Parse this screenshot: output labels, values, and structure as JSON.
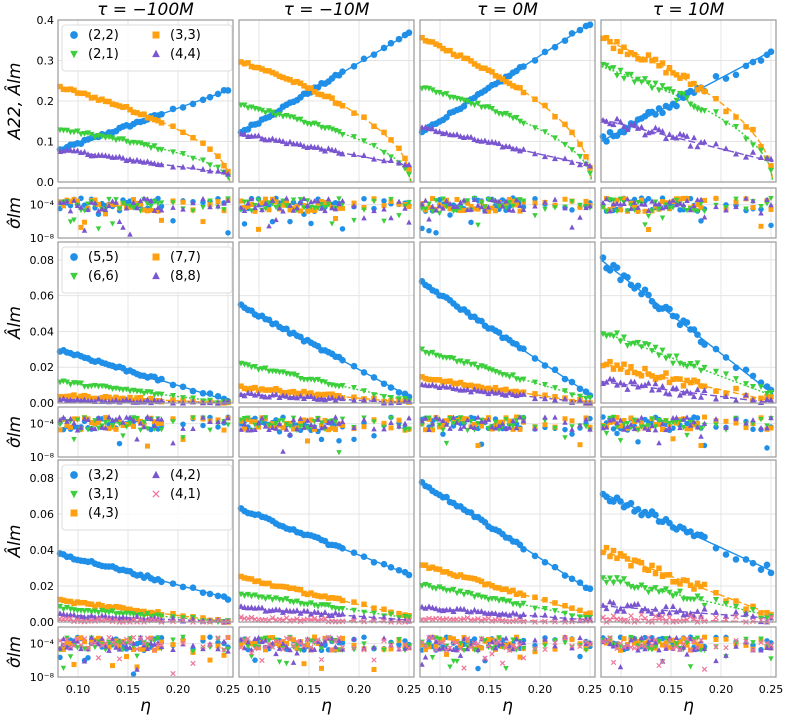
{
  "chart_data": {
    "type": "scatter",
    "title": "",
    "columns": [
      "τ = −100M",
      "τ = −10M",
      "τ = 0M",
      "τ = 10M"
    ],
    "xlabel": "η",
    "xlim": [
      0.08,
      0.255
    ],
    "xticks": [
      "0.10",
      "0.15",
      "0.20",
      "0.25"
    ],
    "xtick_values": [
      0.1,
      0.15,
      0.2,
      0.25
    ],
    "colors": {
      "blue": "#1f8fe8",
      "green": "#3ccf3c",
      "orange": "#ffa010",
      "purple": "#7a55d0",
      "pink": "#ee7799"
    },
    "rows": [
      {
        "ylabel": "A22, Âlm",
        "ylim": [
          0,
          0.4
        ],
        "yticks": [
          "0.0",
          "0.1",
          "0.2",
          "0.3",
          "0.4"
        ],
        "ytick_values": [
          0,
          0.1,
          0.2,
          0.3,
          0.4
        ],
        "legend": [
          {
            "label": "(2,2)",
            "color": "#1f8fe8",
            "marker": "circle"
          },
          {
            "label": "(3,3)",
            "color": "#ffa010",
            "marker": "square"
          },
          {
            "label": "(2,1)",
            "color": "#3ccf3c",
            "marker": "tri-down"
          },
          {
            "label": "(4,4)",
            "color": "#7a55d0",
            "marker": "tri-up"
          }
        ],
        "series": [
          {
            "name": "(2,2)",
            "color": "#1f8fe8",
            "marker": "circle",
            "kind": "lin",
            "start": [
              0.077,
              0.12,
              0.12,
              0.1
            ],
            "end": [
              0.228,
              0.37,
              0.395,
              0.325
            ]
          },
          {
            "name": "(3,3)",
            "color": "#ffa010",
            "marker": "square",
            "kind": "sqrt",
            "start": [
              0.235,
              0.3,
              0.355,
              0.355
            ],
            "end": [
              0.0,
              0.0,
              0.0,
              0.0
            ]
          },
          {
            "name": "(2,1)",
            "color": "#3ccf3c",
            "marker": "tri-down",
            "kind": "sqrt",
            "start": [
              0.13,
              0.19,
              0.235,
              0.285
            ],
            "end": [
              0.0,
              0.0,
              0.0,
              0.0
            ]
          },
          {
            "name": "(4,4)",
            "color": "#7a55d0",
            "marker": "tri-up",
            "kind": "lin",
            "start": [
              0.08,
              0.12,
              0.135,
              0.155
            ],
            "end": [
              0.02,
              0.04,
              0.04,
              0.05
            ]
          }
        ]
      },
      {
        "ylabel": "σ̂lm",
        "log": true,
        "ylim": [
          1e-08,
          0.01
        ],
        "yticks": [
          "10⁻⁴",
          "10⁻⁸"
        ],
        "ytick_values": [
          0.0001,
          1e-08
        ]
      },
      {
        "ylabel": "Âlm",
        "ylim": [
          0,
          0.09
        ],
        "yticks": [
          "0.00",
          "0.02",
          "0.04",
          "0.06",
          "0.08"
        ],
        "ytick_values": [
          0,
          0.02,
          0.04,
          0.06,
          0.08
        ],
        "legend": [
          {
            "label": "(5,5)",
            "color": "#1f8fe8",
            "marker": "circle"
          },
          {
            "label": "(7,7)",
            "color": "#ffa010",
            "marker": "square"
          },
          {
            "label": "(6,6)",
            "color": "#3ccf3c",
            "marker": "tri-down"
          },
          {
            "label": "(8,8)",
            "color": "#7a55d0",
            "marker": "tri-up"
          }
        ],
        "series": [
          {
            "name": "(5,5)",
            "color": "#1f8fe8",
            "marker": "circle",
            "kind": "lin",
            "start": [
              0.03,
              0.055,
              0.068,
              0.08
            ],
            "end": [
              0.001,
              0.003,
              0.004,
              0.005
            ]
          },
          {
            "name": "(7,7)",
            "color": "#ffa010",
            "marker": "square",
            "kind": "lin",
            "start": [
              0.004,
              0.009,
              0.014,
              0.022
            ],
            "end": [
              0.0,
              0.0,
              0.0,
              0.001
            ]
          },
          {
            "name": "(6,6)",
            "color": "#3ccf3c",
            "marker": "tri-down",
            "kind": "lin",
            "start": [
              0.012,
              0.022,
              0.03,
              0.04
            ],
            "end": [
              0.0,
              0.001,
              0.002,
              0.004
            ]
          },
          {
            "name": "(8,8)",
            "color": "#7a55d0",
            "marker": "tri-up",
            "kind": "lin",
            "start": [
              0.002,
              0.005,
              0.01,
              0.012
            ],
            "end": [
              0.0,
              0.0,
              0.0,
              0.0
            ]
          }
        ]
      },
      {
        "ylabel": "σ̂lm",
        "log": true,
        "ylim": [
          1e-08,
          0.01
        ],
        "yticks": [
          "10⁻⁴",
          "10⁻⁸"
        ],
        "ytick_values": [
          0.0001,
          1e-08
        ]
      },
      {
        "ylabel": "Âlm",
        "ylim": [
          0,
          0.09
        ],
        "yticks": [
          "0.00",
          "0.02",
          "0.04",
          "0.06",
          "0.08"
        ],
        "ytick_values": [
          0,
          0.02,
          0.04,
          0.06,
          0.08
        ],
        "legend": [
          {
            "label": "(3,2)",
            "color": "#1f8fe8",
            "marker": "circle"
          },
          {
            "label": "(4,2)",
            "color": "#7a55d0",
            "marker": "tri-up"
          },
          {
            "label": "(3,1)",
            "color": "#3ccf3c",
            "marker": "tri-down"
          },
          {
            "label": "(4,1)",
            "color": "#ee7799",
            "marker": "cross"
          },
          {
            "label": "(4,3)",
            "color": "#ffa010",
            "marker": "square"
          }
        ],
        "series": [
          {
            "name": "(3,2)",
            "color": "#1f8fe8",
            "marker": "circle",
            "kind": "lin",
            "start": [
              0.038,
              0.063,
              0.078,
              0.072
            ],
            "end": [
              0.013,
              0.026,
              0.017,
              0.028
            ]
          },
          {
            "name": "(4,3)",
            "color": "#ffa010",
            "marker": "square",
            "kind": "lin",
            "start": [
              0.012,
              0.025,
              0.032,
              0.04
            ],
            "end": [
              0.0,
              0.003,
              0.004,
              0.004
            ]
          },
          {
            "name": "(3,1)",
            "color": "#3ccf3c",
            "marker": "tri-down",
            "kind": "lin",
            "start": [
              0.008,
              0.016,
              0.021,
              0.025
            ],
            "end": [
              0.0,
              0.002,
              0.002,
              0.003
            ]
          },
          {
            "name": "(4,2)",
            "color": "#7a55d0",
            "marker": "tri-up",
            "kind": "lin",
            "start": [
              0.004,
              0.008,
              0.008,
              0.009
            ],
            "end": [
              0.0,
              0.001,
              0.001,
              0.002
            ]
          },
          {
            "name": "(4,1)",
            "color": "#ee7799",
            "marker": "cross",
            "kind": "lin",
            "start": [
              0.001,
              0.002,
              0.002,
              0.002
            ],
            "end": [
              0.0,
              0.0,
              0.0,
              0.0
            ]
          }
        ]
      },
      {
        "ylabel": "σ̂lm",
        "log": true,
        "ylim": [
          1e-08,
          0.01
        ],
        "yticks": [
          "10⁻⁴",
          "10⁻⁸"
        ],
        "ytick_values": [
          0.0001,
          1e-08
        ]
      }
    ]
  }
}
